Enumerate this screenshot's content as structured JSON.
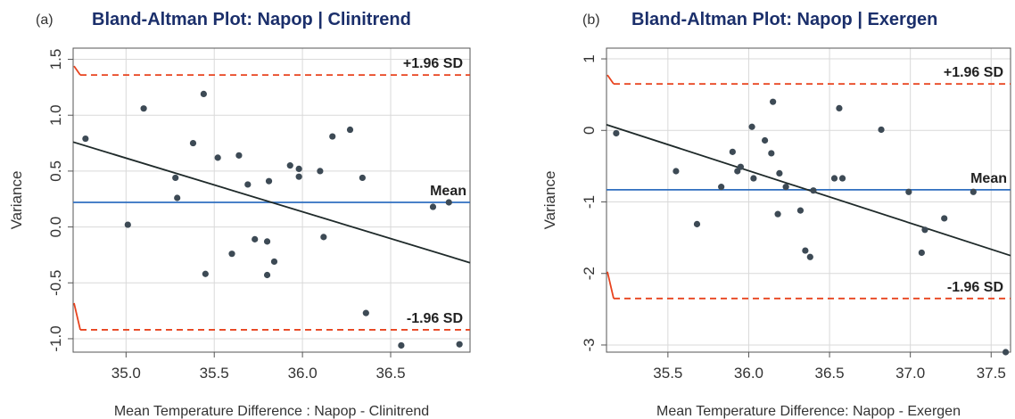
{
  "chart_data": [
    {
      "type": "scatter",
      "panel_label": "(a)",
      "title": "Bland-Altman Plot: Napop | Clinitrend",
      "xlabel": "Mean Temperature Difference : Napop - Clinitrend",
      "ylabel": "Variance",
      "xlim": [
        34.7,
        36.95
      ],
      "ylim": [
        -1.12,
        1.6
      ],
      "xticks": [
        35.0,
        35.5,
        36.0,
        36.5
      ],
      "xtick_labels": [
        "35.0",
        "35.5",
        "36.0",
        "36.5"
      ],
      "yticks": [
        -1.0,
        -0.5,
        0.0,
        0.5,
        1.0,
        1.5
      ],
      "ytick_labels": [
        "-1.0",
        "-0.5",
        "0.0",
        "0.5",
        "1.0",
        "1.5"
      ],
      "grid": true,
      "mean": 0.22,
      "upper_sd": 1.36,
      "lower_sd": -0.92,
      "label_upper": "+1.96 SD",
      "label_mean": "Mean",
      "label_lower": "-1.96 SD",
      "regression": [
        [
          34.7,
          0.76
        ],
        [
          36.95,
          -0.32
        ]
      ],
      "points": [
        [
          34.77,
          0.79
        ],
        [
          35.01,
          0.02
        ],
        [
          35.1,
          1.06
        ],
        [
          35.28,
          0.44
        ],
        [
          35.29,
          0.26
        ],
        [
          35.38,
          0.75
        ],
        [
          35.44,
          1.19
        ],
        [
          35.45,
          -0.42
        ],
        [
          35.52,
          0.62
        ],
        [
          35.6,
          -0.24
        ],
        [
          35.64,
          0.64
        ],
        [
          35.69,
          0.38
        ],
        [
          35.73,
          -0.11
        ],
        [
          35.8,
          -0.13
        ],
        [
          35.8,
          -0.43
        ],
        [
          35.81,
          0.41
        ],
        [
          35.84,
          -0.31
        ],
        [
          35.93,
          0.55
        ],
        [
          35.98,
          0.52
        ],
        [
          35.98,
          0.45
        ],
        [
          36.1,
          0.5
        ],
        [
          36.12,
          -0.09
        ],
        [
          36.17,
          0.81
        ],
        [
          36.27,
          0.87
        ],
        [
          36.34,
          0.44
        ],
        [
          36.36,
          -0.77
        ],
        [
          36.56,
          -1.06
        ],
        [
          36.74,
          0.18
        ],
        [
          36.83,
          0.22
        ],
        [
          36.89,
          -1.05
        ]
      ]
    },
    {
      "type": "scatter",
      "panel_label": "(b)",
      "title": "Bland-Altman Plot: Napop | Exergen",
      "xlabel": "Mean Temperature Difference: Napop - Exergen",
      "ylabel": "Variance",
      "xlim": [
        35.12,
        37.62
      ],
      "ylim": [
        -3.1,
        1.15
      ],
      "xticks": [
        35.5,
        36.0,
        36.5,
        37.0,
        37.5
      ],
      "xtick_labels": [
        "35.5",
        "36.0",
        "36.5",
        "37.0",
        "37.5"
      ],
      "yticks": [
        -3,
        -2,
        -1,
        0,
        1
      ],
      "ytick_labels": [
        "-3",
        "-2",
        "-1",
        "0",
        "1"
      ],
      "grid": true,
      "mean": -0.83,
      "upper_sd": 0.65,
      "lower_sd": -2.35,
      "label_upper": "+1.96 SD",
      "label_mean": "Mean",
      "label_lower": "-1.96 SD",
      "regression": [
        [
          35.12,
          0.08
        ],
        [
          37.62,
          -1.75
        ]
      ],
      "points": [
        [
          35.18,
          -0.04
        ],
        [
          35.55,
          -0.57
        ],
        [
          35.68,
          -1.31
        ],
        [
          35.83,
          -0.79
        ],
        [
          35.9,
          -0.3
        ],
        [
          35.93,
          -0.57
        ],
        [
          35.95,
          -0.51
        ],
        [
          36.02,
          0.05
        ],
        [
          36.03,
          -0.67
        ],
        [
          36.1,
          -0.14
        ],
        [
          36.14,
          -0.32
        ],
        [
          36.15,
          0.4
        ],
        [
          36.18,
          -1.17
        ],
        [
          36.19,
          -0.6
        ],
        [
          36.23,
          -0.79
        ],
        [
          36.32,
          -1.12
        ],
        [
          36.35,
          -1.68
        ],
        [
          36.38,
          -1.77
        ],
        [
          36.4,
          -0.84
        ],
        [
          36.53,
          -0.67
        ],
        [
          36.56,
          0.31
        ],
        [
          36.58,
          -0.67
        ],
        [
          36.82,
          0.01
        ],
        [
          36.99,
          -0.86
        ],
        [
          37.07,
          -1.71
        ],
        [
          37.09,
          -1.39
        ],
        [
          37.21,
          -1.23
        ],
        [
          37.39,
          -0.86
        ],
        [
          37.59,
          -3.1
        ]
      ]
    }
  ]
}
